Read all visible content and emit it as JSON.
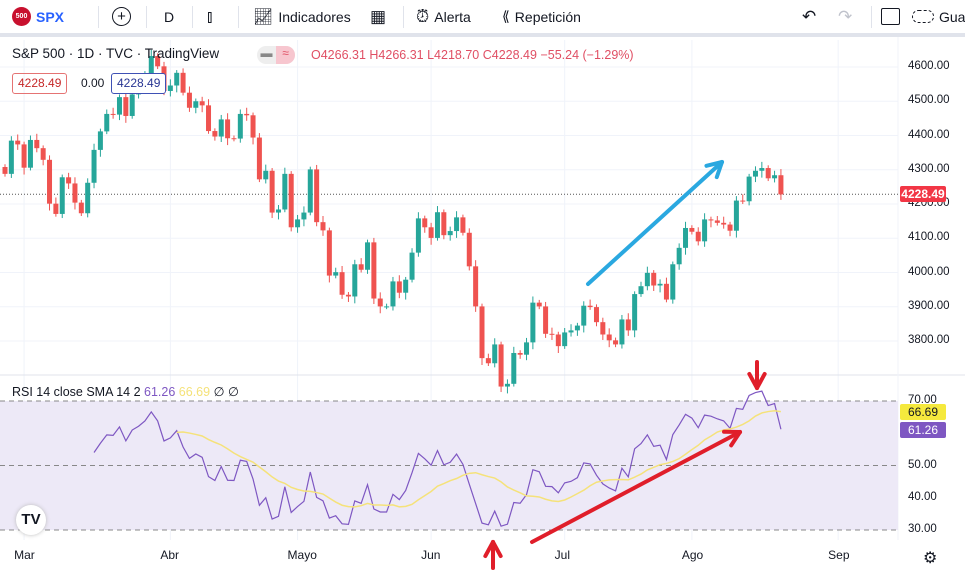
{
  "toolbar": {
    "symbol_badge": "500",
    "symbol": "SPX",
    "interval": "D",
    "indicators": "Indicadores",
    "alert": "Alerta",
    "replay": "Repetición",
    "save": "Gua",
    "icons": [
      "plus-circle-icon",
      "candles-icon",
      "indicators-icon",
      "layouts-icon",
      "alarm-icon",
      "replay-icon",
      "undo-icon",
      "redo-icon",
      "fullscreen-icon",
      "cloud-icon"
    ]
  },
  "legend": {
    "title": "S&P 500 · 1D · TVC · TradingView",
    "open": "O4266.31",
    "high": "H4266.31",
    "low": "L4218.70",
    "close": "C4228.49",
    "change": "−55.24 (−1.29%)",
    "sell": "4228.49",
    "spread": "0.00",
    "buy": "4228.49"
  },
  "rsi_legend": {
    "title": "RSI 14 close SMA 14 2",
    "rsi": "61.26",
    "sma": "66.69",
    "na1": "∅",
    "na2": "∅"
  },
  "colors": {
    "up": "#26a69a",
    "down": "#ef5350",
    "rsi": "#7e57c2",
    "sma": "#f5e27a",
    "band": "#ede9f7",
    "last": "#f23645",
    "blue_arrow": "#2aa8e0",
    "red_arrow": "#e01e2a"
  },
  "chart_data": [
    {
      "type": "candlestick",
      "title": "S&P 500 · 1D · TVC",
      "ylim": [
        3700,
        4650
      ],
      "y_ticks": [
        "4600.00",
        "4500.00",
        "4400.00",
        "4300.00",
        "4200.00",
        "4100.00",
        "4000.00",
        "3900.00",
        "3800.00"
      ],
      "x_ticks": [
        {
          "label": "Mar",
          "index": 3
        },
        {
          "label": "Abr",
          "index": 26
        },
        {
          "label": "Mayo",
          "index": 46
        },
        {
          "label": "Jun",
          "index": 67
        },
        {
          "label": "Jul",
          "index": 88
        },
        {
          "label": "Ago",
          "index": 108
        },
        {
          "label": "Sep",
          "index": 131
        }
      ],
      "last_price": "4228.49",
      "close": [
        4288,
        4385,
        4374,
        4306,
        4387,
        4363,
        4329,
        4201,
        4171,
        4278,
        4260,
        4204,
        4173,
        4262,
        4358,
        4412,
        4463,
        4461,
        4512,
        4457,
        4520,
        4543,
        4575,
        4632,
        4602,
        4530,
        4546,
        4583,
        4525,
        4481,
        4500,
        4488,
        4413,
        4397,
        4447,
        4392,
        4391,
        4463,
        4459,
        4394,
        4272,
        4297,
        4175,
        4184,
        4288,
        4132,
        4155,
        4175,
        4301,
        4147,
        4123,
        3991,
        4001,
        3935,
        3930,
        4024,
        4008,
        4088,
        3924,
        3901,
        3901,
        3974,
        3941,
        3979,
        4058,
        4158,
        4132,
        4101,
        4176,
        4109,
        4121,
        4161,
        4116,
        4018,
        3901,
        3750,
        3735,
        3790,
        3667,
        3675,
        3765,
        3760,
        3796,
        3912,
        3901,
        3821,
        3819,
        3785,
        3825,
        3831,
        3845,
        3903,
        3899,
        3855,
        3819,
        3802,
        3790,
        3863,
        3831,
        3937,
        3960,
        3999,
        3962,
        3967,
        3921,
        4024,
        4072,
        4130,
        4119,
        4091,
        4155,
        4152,
        4145,
        4140,
        4122,
        4210,
        4208,
        4280,
        4297,
        4305,
        4275,
        4284,
        4228
      ]
    },
    {
      "type": "line",
      "title": "RSI 14 close SMA 14 2",
      "ylim": [
        25,
        78
      ],
      "y_ticks": [
        "70.00",
        "50.00",
        "40.00",
        "30.00"
      ],
      "levels": [
        70,
        50,
        30
      ],
      "last_rsi": "61.26",
      "last_sma": "66.69"
    }
  ]
}
